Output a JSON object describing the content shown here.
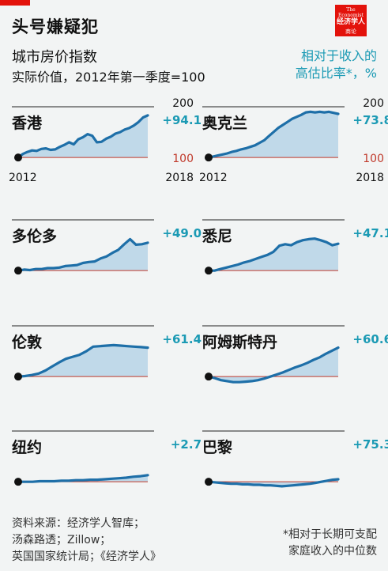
{
  "header": {
    "title": "头号嫌疑犯",
    "subtitle": "城市房价指数",
    "subtitle2": "实际价值，2012年第一季度=100",
    "legend_line1": "相对于收入的",
    "legend_line2": "高估比率*，%"
  },
  "logo": {
    "line1": "The Economist",
    "line2": "经济学人",
    "line3": "商论"
  },
  "footer": {
    "source1": "资料来源：经济学人智库；",
    "source2": "汤森路透；Zillow；",
    "source3": "英国国家统计局；《经济学人》",
    "note1": "*相对于长期可支配",
    "note2": "家庭收入的中位数"
  },
  "colors": {
    "line": "#1e6fa8",
    "fill": "#b7d3e6",
    "baseline": "#c0392b",
    "accent": "#1b9ab4",
    "brand": "#e3120b"
  },
  "chart_data": [
    {
      "type": "area",
      "title": "香港",
      "annotation": "+94.1",
      "ylim": [
        80,
        200
      ],
      "baseline": 100,
      "y_tick_labels": [
        "200",
        "100"
      ],
      "x_tick_labels": [
        "2012",
        "2018"
      ],
      "values": [
        100,
        107,
        111,
        114,
        113,
        117,
        118,
        115,
        116,
        121,
        125,
        130,
        126,
        136,
        140,
        146,
        143,
        130,
        131,
        137,
        141,
        147,
        150,
        155,
        158,
        163,
        170,
        179,
        183
      ]
    },
    {
      "type": "area",
      "title": "奥克兰",
      "annotation": "+73.8",
      "ylim": [
        80,
        200
      ],
      "baseline": 100,
      "y_tick_labels": [
        "200",
        "100"
      ],
      "x_tick_labels": [
        "2012",
        "2018"
      ],
      "values": [
        100,
        102,
        104,
        106,
        108,
        111,
        113,
        116,
        118,
        121,
        124,
        129,
        134,
        142,
        150,
        158,
        164,
        170,
        176,
        180,
        184,
        189,
        190,
        189,
        190,
        189,
        190,
        188,
        186
      ]
    },
    {
      "type": "area",
      "title": "多伦多",
      "annotation": "+49.0",
      "ylim": [
        80,
        200
      ],
      "baseline": 100,
      "values": [
        100,
        102,
        101,
        103,
        103,
        105,
        105,
        106,
        109,
        110,
        111,
        115,
        117,
        118,
        124,
        128,
        135,
        141,
        152,
        162,
        151,
        152,
        155
      ]
    },
    {
      "type": "area",
      "title": "悉尼",
      "annotation": "+47.1",
      "ylim": [
        80,
        200
      ],
      "baseline": 100,
      "values": [
        100,
        100,
        103,
        106,
        109,
        112,
        116,
        119,
        123,
        127,
        131,
        137,
        149,
        152,
        150,
        156,
        160,
        162,
        163,
        160,
        156,
        150,
        153
      ]
    },
    {
      "type": "area",
      "title": "伦敦",
      "annotation": "+61.4",
      "ylim": [
        80,
        200
      ],
      "baseline": 100,
      "values": [
        100,
        101,
        103,
        106,
        112,
        120,
        128,
        135,
        139,
        143,
        150,
        159,
        160,
        161,
        162,
        161,
        160,
        159,
        158,
        157
      ]
    },
    {
      "type": "area",
      "title": "阿姆斯特丹",
      "annotation": "+60.6",
      "ylim": [
        80,
        200
      ],
      "baseline": 100,
      "values": [
        100,
        97,
        93,
        91,
        89,
        89,
        90,
        91,
        93,
        96,
        100,
        104,
        108,
        113,
        118,
        122,
        127,
        133,
        138,
        145,
        151,
        157
      ]
    },
    {
      "type": "area",
      "title": "纽约",
      "annotation": "+2.7",
      "ylim": [
        80,
        200
      ],
      "baseline": 100,
      "values": [
        100,
        100,
        100,
        101,
        101,
        101,
        102,
        102,
        103,
        103,
        104,
        104,
        105,
        106,
        107,
        108,
        110,
        111,
        113
      ]
    },
    {
      "type": "area",
      "title": "巴黎",
      "annotation": "+75.3",
      "ylim": [
        80,
        200
      ],
      "baseline": 100,
      "values": [
        100,
        99,
        98,
        97,
        96,
        96,
        95,
        95,
        94,
        94,
        93,
        93,
        92,
        91,
        92,
        93,
        94,
        95,
        96,
        98,
        100,
        102,
        104,
        105
      ]
    }
  ]
}
